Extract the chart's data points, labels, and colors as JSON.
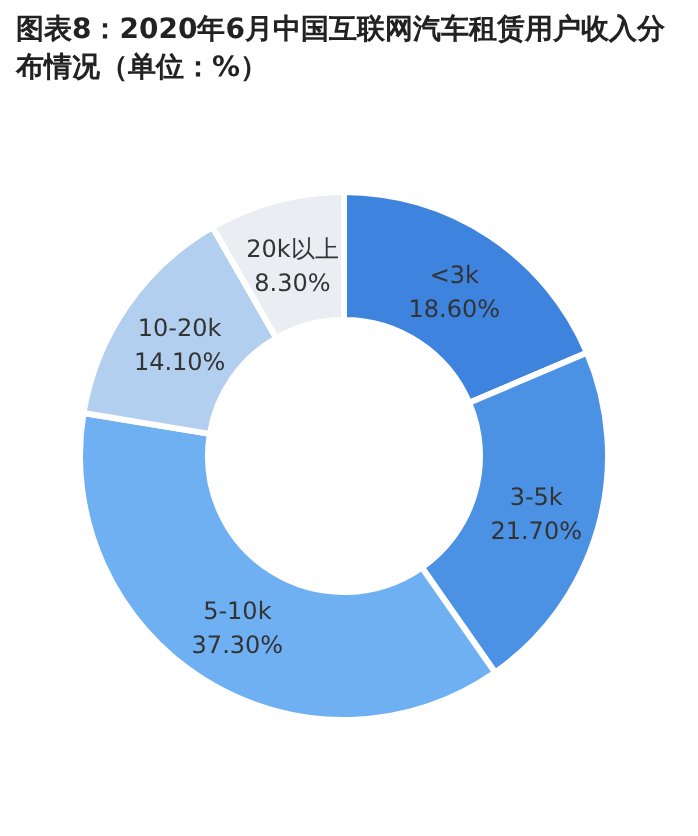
{
  "chart_data": {
    "type": "donut",
    "title": "图表8：2020年6月中国互联网汽车租赁用户收入分布情况（单位：%）",
    "categories": [
      "<3k",
      "3-5k",
      "5-10k",
      "10-20k",
      "20k以上"
    ],
    "values": [
      18.6,
      21.7,
      37.3,
      14.1,
      8.3
    ],
    "value_labels": [
      "18.60%",
      "21.70%",
      "37.30%",
      "14.10%",
      "8.30%"
    ],
    "colors": [
      "#3e84df",
      "#4c92e4",
      "#6eb0f2",
      "#b3cff0",
      "#eaeef3"
    ]
  }
}
